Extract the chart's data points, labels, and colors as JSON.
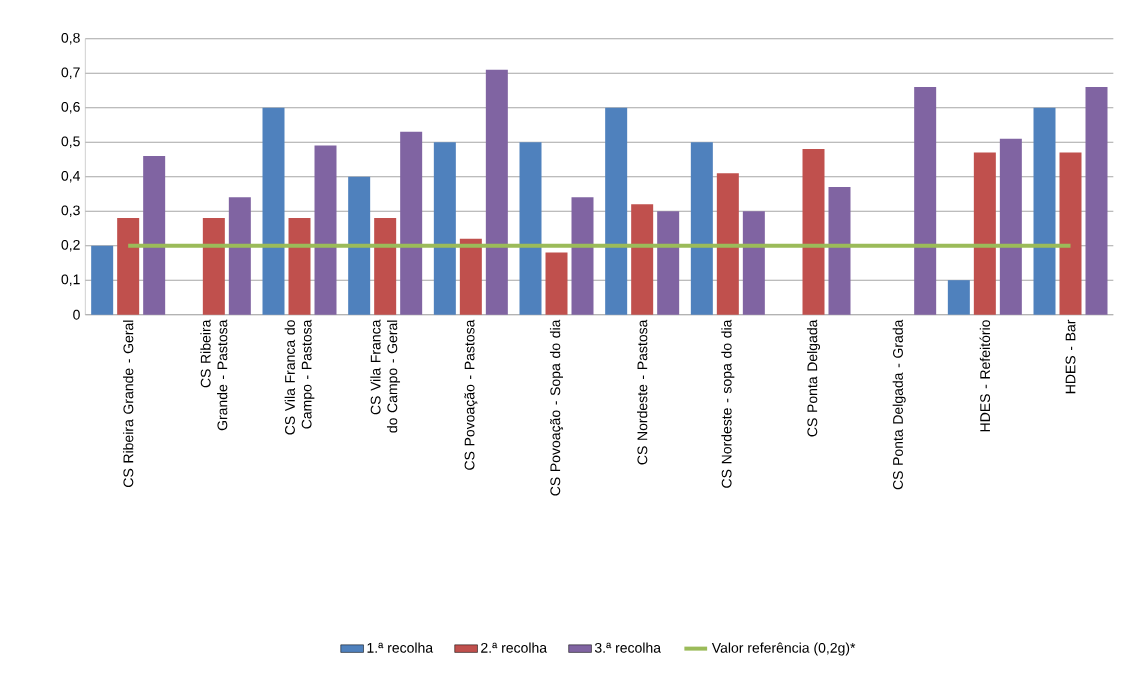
{
  "chart_data": {
    "type": "bar",
    "categories": [
      "CS Ribeira Grande - Geral",
      "CS Ribeira Grande - Pastosa",
      "CS Vila Franca do Campo - Pastosa",
      "CS Vila Franca do Campo - Geral",
      "CS Povoação - Pastosa",
      "CS Povoação - Sopa do dia",
      "CS Nordeste - Pastosa",
      "CS Nordeste - sopa do dia",
      "CS Ponta Delgada",
      "CS Ponta Delgada - Grada",
      "HDES - Refeitório",
      "HDES - Bar"
    ],
    "series": [
      {
        "name": "1.ª recolha",
        "color": "#4f81bd",
        "values": [
          0.2,
          null,
          0.6,
          0.4,
          0.5,
          0.5,
          0.6,
          0.5,
          null,
          null,
          0.1,
          0.6
        ]
      },
      {
        "name": "2.ª recolha",
        "color": "#c0504d",
        "values": [
          0.28,
          0.28,
          0.28,
          0.28,
          0.22,
          0.18,
          0.32,
          0.41,
          0.48,
          null,
          0.47,
          0.47
        ]
      },
      {
        "name": "3.ª recolha",
        "color": "#8064a2",
        "values": [
          0.46,
          0.34,
          0.49,
          0.53,
          0.71,
          0.34,
          0.3,
          0.3,
          0.37,
          0.66,
          0.51,
          0.66
        ]
      },
      {
        "name": "Valor referência (0,2g)*",
        "type": "line",
        "color": "#9bbb59",
        "values": [
          0.2,
          0.2,
          0.2,
          0.2,
          0.2,
          0.2,
          0.2,
          0.2,
          0.2,
          0.2,
          0.2,
          0.2
        ]
      }
    ],
    "ylim": [
      0,
      0.8
    ],
    "yticks": [
      0,
      {
        "value": 0.1,
        "label": "0,1"
      },
      {
        "value": 0.2,
        "label": "0,2"
      },
      {
        "value": 0.3,
        "label": "0,3"
      },
      {
        "value": 0.4,
        "label": "0,4"
      },
      {
        "value": 0.5,
        "label": "0,5"
      },
      {
        "value": 0.6,
        "label": "0,6"
      },
      {
        "value": 0.7,
        "label": "0,7"
      },
      {
        "value": 0.8,
        "label": "0,8"
      }
    ],
    "grid": "y",
    "legend": "bottom"
  }
}
